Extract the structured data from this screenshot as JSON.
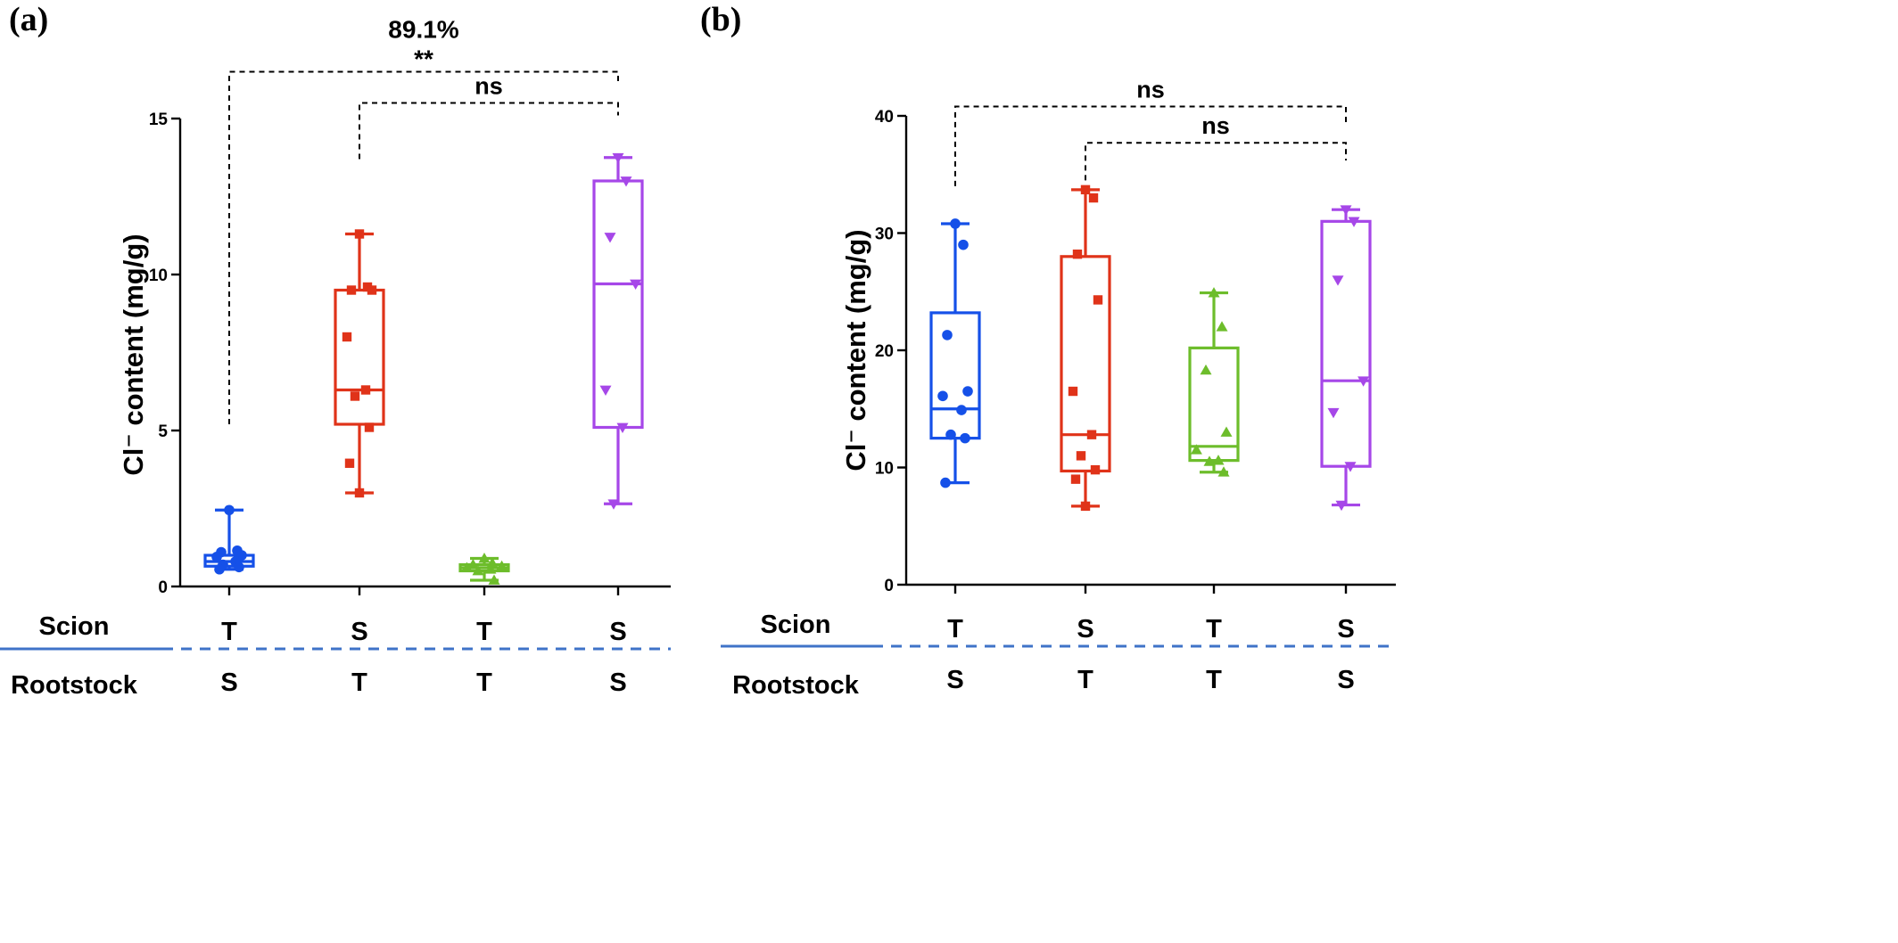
{
  "colors": {
    "blue": "#1550e8",
    "red": "#e03319",
    "green": "#6dbd2b",
    "purple": "#a647e8",
    "axis": "#000000",
    "divider": "#3f73c8"
  },
  "row_labels": {
    "scion": "Scion",
    "rootstock": "Rootstock"
  },
  "chart_data": [
    {
      "panel": "(a)",
      "type": "box",
      "ylabel": "Cl⁻ content (mg/g)",
      "ylim": [
        0,
        15
      ],
      "yticks": [
        0,
        5,
        10,
        15
      ],
      "groups": [
        {
          "scion": "T",
          "rootstock": "S",
          "color": "blue",
          "marker": "circle",
          "min": 0.55,
          "q1": 0.65,
          "median": 0.8,
          "q3": 1.0,
          "max": 2.45,
          "points": [
            2.45,
            1.15,
            1.1,
            1.0,
            0.95,
            0.8,
            0.7,
            0.62,
            0.55
          ]
        },
        {
          "scion": "S",
          "rootstock": "T",
          "color": "red",
          "marker": "square",
          "min": 3.0,
          "q1": 5.2,
          "median": 6.3,
          "q3": 9.5,
          "max": 11.3,
          "points": [
            11.3,
            9.6,
            9.5,
            9.5,
            8.0,
            6.3,
            6.1,
            5.1,
            3.95,
            3.0
          ]
        },
        {
          "scion": "T",
          "rootstock": "T",
          "color": "green",
          "marker": "triangle-up",
          "min": 0.2,
          "q1": 0.5,
          "median": 0.6,
          "q3": 0.7,
          "max": 0.9,
          "points": [
            0.9,
            0.75,
            0.7,
            0.65,
            0.6,
            0.55,
            0.5,
            0.2
          ]
        },
        {
          "scion": "S",
          "rootstock": "S",
          "color": "purple",
          "marker": "triangle-down",
          "min": 2.65,
          "q1": 5.1,
          "median": 9.7,
          "q3": 13.0,
          "max": 13.75,
          "points": [
            13.75,
            13.0,
            11.2,
            9.7,
            6.3,
            5.1,
            2.65
          ]
        }
      ],
      "annotations": [
        {
          "label": "89.1%",
          "sublabel": "**",
          "from_group": 0,
          "to_group": 3,
          "level": 16.5,
          "from_start": 5.2,
          "to_start": 16.1
        },
        {
          "label": "ns",
          "sublabel": "",
          "from_group": 1,
          "to_group": 3,
          "level": 15.5,
          "from_start": 13.7,
          "to_start": 15.1
        }
      ]
    },
    {
      "panel": "(b)",
      "type": "box",
      "ylabel": "Cl⁻ content (mg/g)",
      "ylim": [
        0,
        40
      ],
      "yticks": [
        0,
        10,
        20,
        30,
        40
      ],
      "groups": [
        {
          "scion": "T",
          "rootstock": "S",
          "color": "blue",
          "marker": "circle",
          "min": 8.7,
          "q1": 12.5,
          "median": 15.0,
          "q3": 23.2,
          "max": 30.8,
          "points": [
            30.8,
            29.0,
            21.3,
            16.5,
            16.1,
            14.9,
            12.8,
            12.5,
            8.7
          ]
        },
        {
          "scion": "S",
          "rootstock": "T",
          "color": "red",
          "marker": "square",
          "min": 6.7,
          "q1": 9.7,
          "median": 12.8,
          "q3": 28.0,
          "max": 33.7,
          "points": [
            33.7,
            33.0,
            28.2,
            24.3,
            16.5,
            12.8,
            11.0,
            9.8,
            9.0,
            6.7
          ]
        },
        {
          "scion": "T",
          "rootstock": "T",
          "color": "green",
          "marker": "triangle-up",
          "min": 9.6,
          "q1": 10.6,
          "median": 11.8,
          "q3": 20.2,
          "max": 24.9,
          "points": [
            24.9,
            22.0,
            18.3,
            13.0,
            11.5,
            10.6,
            10.5,
            9.6
          ]
        },
        {
          "scion": "S",
          "rootstock": "S",
          "color": "purple",
          "marker": "triangle-down",
          "min": 6.8,
          "q1": 10.1,
          "median": 17.4,
          "q3": 31.0,
          "max": 32.0,
          "points": [
            32.0,
            31.0,
            26.0,
            17.4,
            14.7,
            10.1,
            6.8
          ]
        }
      ],
      "annotations": [
        {
          "label": "ns",
          "sublabel": "",
          "from_group": 0,
          "to_group": 3,
          "level": 40.8,
          "from_start": 34.0,
          "to_start": 39.3
        },
        {
          "label": "ns",
          "sublabel": "",
          "from_group": 1,
          "to_group": 3,
          "level": 37.7,
          "from_start": 34.5,
          "to_start": 36.2
        }
      ]
    }
  ]
}
